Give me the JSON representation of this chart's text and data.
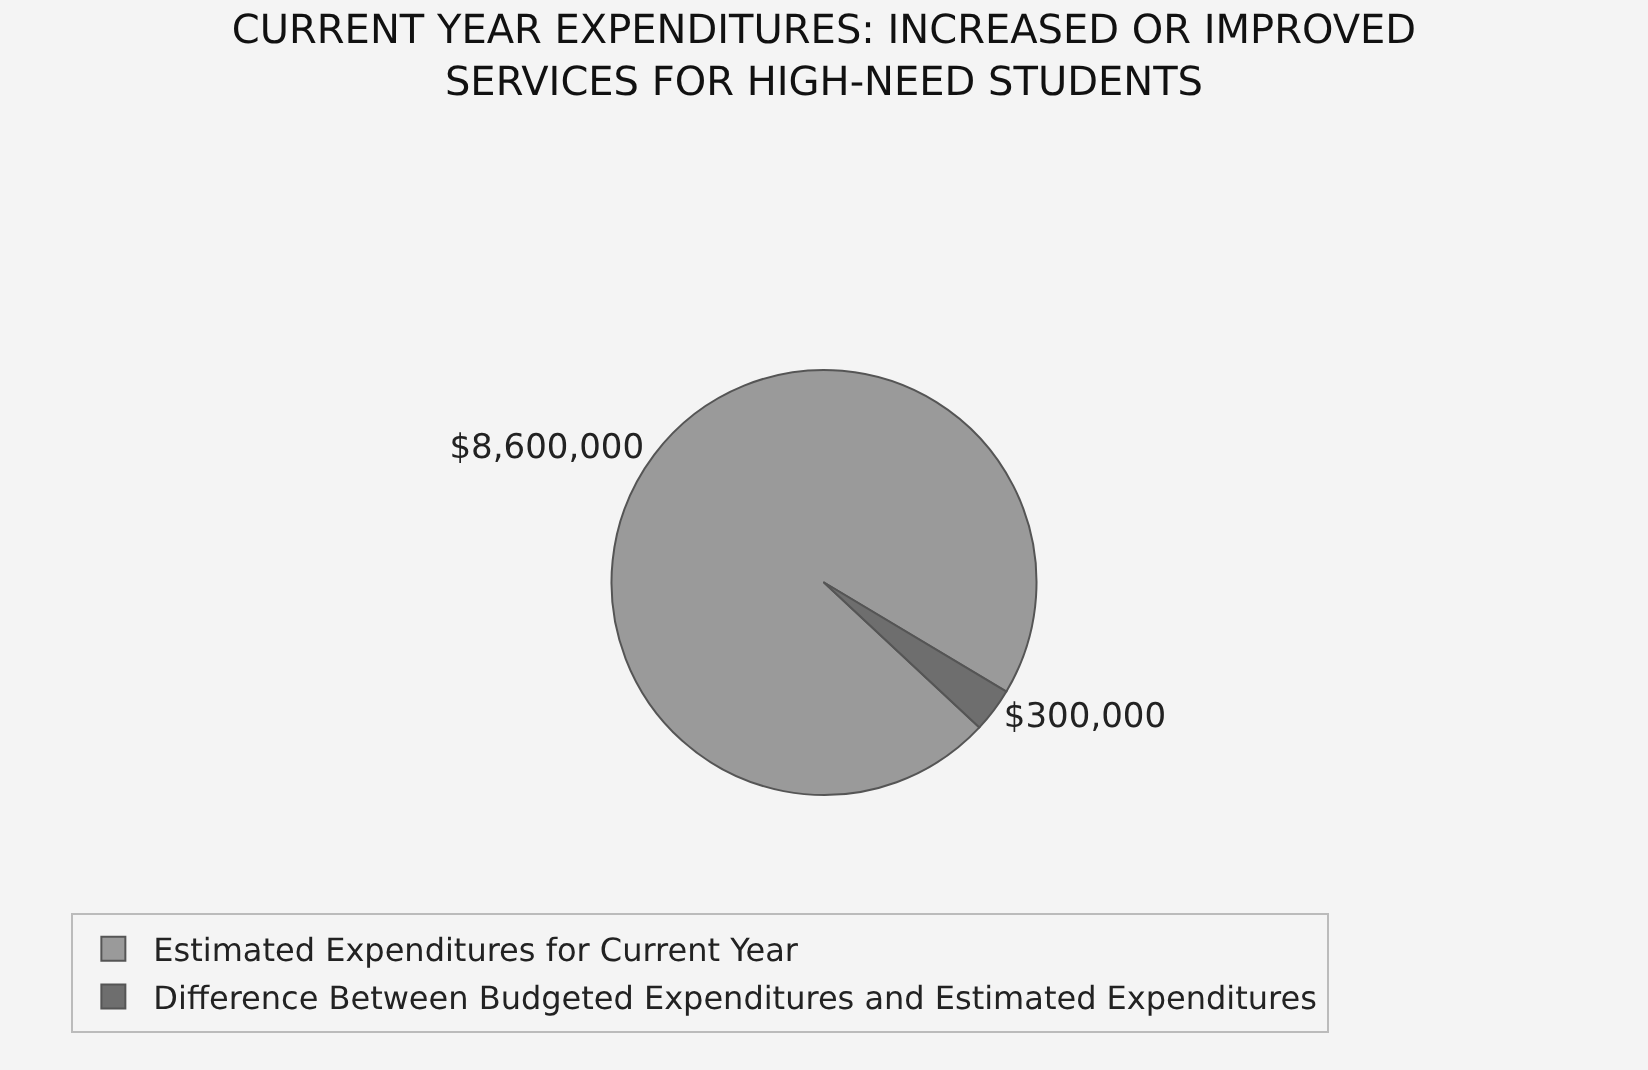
{
  "chart_data": {
    "type": "pie",
    "title": "CURRENT YEAR EXPENDITURES: INCREASED OR IMPROVED SERVICES FOR HIGH-NEED STUDENTS",
    "categories": [
      "Estimated Expenditures for Current Year",
      "Difference Between Budgeted Expenditures and Estimated Expenditures"
    ],
    "values": [
      8600000,
      300000
    ],
    "value_labels": [
      "$8,600,000",
      "$300,000"
    ],
    "colors": [
      "#9a9a9a",
      "#6e6e6e"
    ],
    "legend": "bottom"
  }
}
